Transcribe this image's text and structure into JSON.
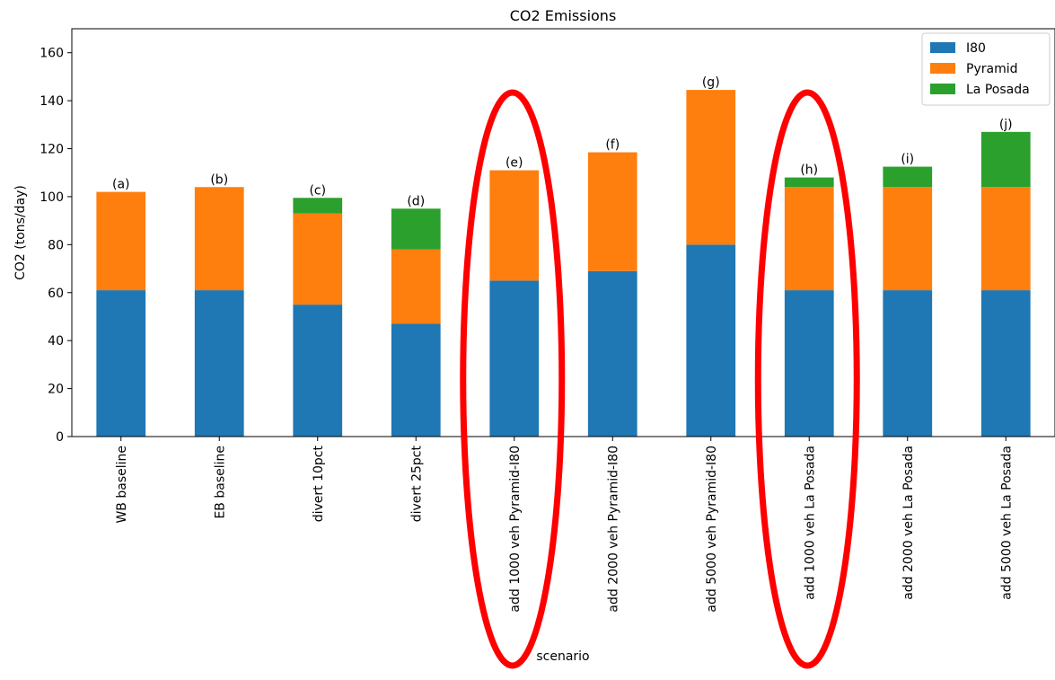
{
  "chart_data": {
    "type": "bar",
    "stacked": true,
    "title": "CO2 Emissions",
    "xlabel": "scenario",
    "ylabel": "CO2 (tons/day)",
    "ylim": [
      0,
      170
    ],
    "yticks": [
      0,
      20,
      40,
      60,
      80,
      100,
      120,
      140,
      160
    ],
    "grid": false,
    "legend_position": "top-right",
    "categories": [
      "WB baseline",
      "EB baseline",
      "divert 10pct",
      "divert 25pct",
      "add 1000 veh Pyramid-I80",
      "add 2000 veh Pyramid-I80",
      "add 5000 veh Pyramid-I80",
      "add 1000 veh La Posada",
      "add 2000 veh La Posada",
      "add 5000 veh La Posada"
    ],
    "bar_labels": [
      "(a)",
      "(b)",
      "(c)",
      "(d)",
      "(e)",
      "(f)",
      "(g)",
      "(h)",
      "(i)",
      "(j)"
    ],
    "series": [
      {
        "name": "I80",
        "color": "#1f77b4",
        "values": [
          61,
          61,
          55,
          47,
          65,
          69,
          80,
          61,
          61,
          61
        ]
      },
      {
        "name": "Pyramid",
        "color": "#ff7f0e",
        "values": [
          41,
          43,
          38,
          31,
          46,
          49.5,
          64.5,
          43,
          43,
          43
        ]
      },
      {
        "name": "La Posada",
        "color": "#2ca02c",
        "values": [
          0,
          0,
          6.5,
          17,
          0,
          0,
          0,
          4,
          8.5,
          23
        ]
      }
    ],
    "highlighted_categories": [
      "add 1000 veh Pyramid-I80",
      "add 1000 veh La Posada"
    ],
    "highlight_color": "#ff0000"
  }
}
